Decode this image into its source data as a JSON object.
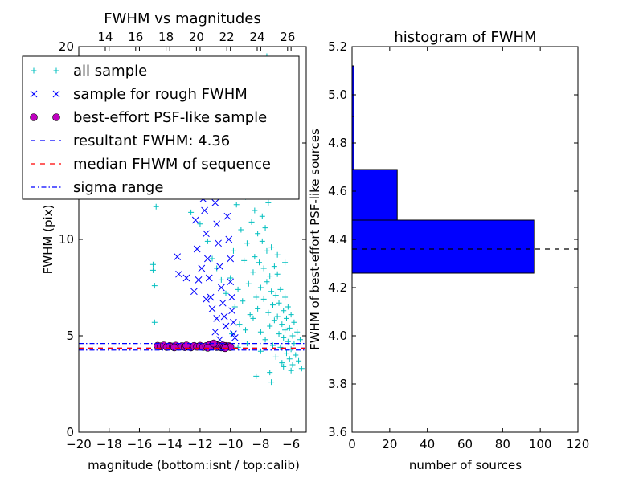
{
  "chart_data": [
    {
      "type": "scatter",
      "title": "FWHM vs magnitudes",
      "xlabel": "magnitude (bottom:isnt / top:calib)",
      "ylabel": "FWHM (pix)",
      "xlim": [
        -20,
        -5
      ],
      "ylim": [
        0,
        20
      ],
      "x_ticks": [
        "−20",
        "−18",
        "−16",
        "−14",
        "−12",
        "−10",
        "−8",
        "−6"
      ],
      "y_ticks": [
        "0",
        "5",
        "10",
        "15",
        "20"
      ],
      "top_axis_ticks": [
        "14",
        "16",
        "18",
        "20",
        "22",
        "24",
        "26"
      ],
      "grid": false,
      "legend_position": "upper-left",
      "legend": [
        {
          "label": "all sample",
          "marker": "+",
          "color": "#00bfbf"
        },
        {
          "label": "sample for rough FWHM",
          "marker": "x",
          "color": "#0000ff"
        },
        {
          "label": "best-effort PSF-like sample",
          "marker": "o",
          "color": "#bf00bf"
        },
        {
          "label": "resultant FWHM: 4.36",
          "line": "dashed",
          "color": "#0000ff"
        },
        {
          "label": "median FHWM of sequence",
          "line": "dashed",
          "color": "#ff0000"
        },
        {
          "label": "sigma range",
          "line": "dashdot",
          "color": "#0000ff"
        }
      ],
      "series": [
        {
          "name": "all sample",
          "points": [
            [
              -15.1,
              8.7
            ],
            [
              -15.1,
              8.4
            ],
            [
              -15.0,
              7.6
            ],
            [
              -15.0,
              5.7
            ],
            [
              -14.9,
              11.7
            ],
            [
              -14.6,
              13.5
            ],
            [
              -14.3,
              14.0
            ],
            [
              -13.9,
              12.5
            ],
            [
              -13.5,
              12.8
            ],
            [
              -13.0,
              13.2
            ],
            [
              -12.6,
              11.4
            ],
            [
              -12.0,
              10.8
            ],
            [
              -11.5,
              9.9
            ],
            [
              -11.2,
              9.0
            ],
            [
              -10.9,
              8.5
            ],
            [
              -10.6,
              7.9
            ],
            [
              -10.3,
              7.2
            ],
            [
              -10.0,
              8.0
            ],
            [
              -9.9,
              5.1
            ],
            [
              -9.8,
              9.4
            ],
            [
              -9.7,
              6.5
            ],
            [
              -9.6,
              11.8
            ],
            [
              -9.5,
              7.4
            ],
            [
              -9.4,
              5.6
            ],
            [
              -9.3,
              10.5
            ],
            [
              -9.2,
              6.8
            ],
            [
              -9.1,
              8.9
            ],
            [
              -9.0,
              12.2
            ],
            [
              -9.0,
              5.3
            ],
            [
              -8.9,
              9.8
            ],
            [
              -8.8,
              7.7
            ],
            [
              -8.8,
              13.4
            ],
            [
              -8.7,
              6.1
            ],
            [
              -8.6,
              10.9
            ],
            [
              -8.6,
              15.2
            ],
            [
              -8.5,
              8.3
            ],
            [
              -8.5,
              5.9
            ],
            [
              -8.4,
              11.5
            ],
            [
              -8.4,
              9.1
            ],
            [
              -8.3,
              7.0
            ],
            [
              -8.3,
              13.0
            ],
            [
              -8.2,
              10.3
            ],
            [
              -8.2,
              6.4
            ],
            [
              -8.1,
              8.8
            ],
            [
              -8.1,
              12.6
            ],
            [
              -8.0,
              7.5
            ],
            [
              -8.0,
              5.2
            ],
            [
              -7.9,
              9.9
            ],
            [
              -7.9,
              11.2
            ],
            [
              -7.8,
              6.9
            ],
            [
              -7.8,
              8.5
            ],
            [
              -7.7,
              10.6
            ],
            [
              -7.7,
              4.8
            ],
            [
              -7.6,
              7.8
            ],
            [
              -7.6,
              9.4
            ],
            [
              -7.5,
              6.2
            ],
            [
              -7.5,
              11.9
            ],
            [
              -7.4,
              8.1
            ],
            [
              -7.4,
              5.5
            ],
            [
              -7.3,
              7.3
            ],
            [
              -7.3,
              9.6
            ],
            [
              -7.2,
              6.6
            ],
            [
              -7.2,
              4.5
            ],
            [
              -7.1,
              8.6
            ],
            [
              -7.1,
              5.8
            ],
            [
              -7.0,
              7.1
            ],
            [
              -7.0,
              3.9
            ],
            [
              -6.9,
              6.0
            ],
            [
              -6.9,
              8.2
            ],
            [
              -6.8,
              5.1
            ],
            [
              -6.8,
              6.7
            ],
            [
              -6.7,
              4.4
            ],
            [
              -6.7,
              7.4
            ],
            [
              -6.6,
              5.6
            ],
            [
              -6.6,
              3.6
            ],
            [
              -6.5,
              6.3
            ],
            [
              -6.5,
              4.9
            ],
            [
              -6.4,
              5.3
            ],
            [
              -6.4,
              7.0
            ],
            [
              -6.3,
              4.1
            ],
            [
              -6.3,
              5.9
            ],
            [
              -6.2,
              4.7
            ],
            [
              -6.2,
              6.5
            ],
            [
              -6.1,
              3.8
            ],
            [
              -6.1,
              5.4
            ],
            [
              -6.0,
              4.3
            ],
            [
              -6.0,
              6.1
            ],
            [
              -5.9,
              5.0
            ],
            [
              -5.9,
              3.5
            ],
            [
              -5.8,
              4.6
            ],
            [
              -5.8,
              5.7
            ],
            [
              -5.7,
              4.0
            ],
            [
              -5.6,
              5.2
            ],
            [
              -5.5,
              3.7
            ],
            [
              -5.4,
              4.8
            ],
            [
              -5.3,
              3.3
            ],
            [
              -7.3,
              2.6
            ],
            [
              -8.3,
              2.9
            ],
            [
              -7.9,
              17.5
            ],
            [
              -7.6,
              19.5
            ],
            [
              -7.1,
              18.4
            ],
            [
              -8.7,
              16.6
            ],
            [
              -9.1,
              14.6
            ],
            [
              -6.9,
              9.2
            ],
            [
              -6.4,
              8.8
            ],
            [
              -7.7,
              12.9
            ],
            [
              -8.9,
              4.6
            ],
            [
              -9.5,
              4.4
            ],
            [
              -8.0,
              4.2
            ],
            [
              -6.5,
              3.4
            ],
            [
              -7.4,
              3.1
            ],
            [
              -6.0,
              3.2
            ]
          ]
        },
        {
          "name": "sample for rough FWHM",
          "points": [
            [
              -13.5,
              9.1
            ],
            [
              -13.4,
              8.2
            ],
            [
              -12.9,
              8.0
            ],
            [
              -12.3,
              11.0
            ],
            [
              -12.2,
              9.5
            ],
            [
              -12.1,
              7.9
            ],
            [
              -11.8,
              12.1
            ],
            [
              -11.7,
              11.5
            ],
            [
              -11.6,
              10.3
            ],
            [
              -11.5,
              9.0
            ],
            [
              -11.4,
              8.0
            ],
            [
              -11.3,
              7.0
            ],
            [
              -11.2,
              6.4
            ],
            [
              -11.1,
              12.8
            ],
            [
              -11.0,
              11.9
            ],
            [
              -10.9,
              10.8
            ],
            [
              -10.8,
              9.8
            ],
            [
              -10.7,
              8.6
            ],
            [
              -10.6,
              7.5
            ],
            [
              -10.5,
              6.7
            ],
            [
              -10.4,
              6.0
            ],
            [
              -10.3,
              5.5
            ],
            [
              -10.2,
              11.2
            ],
            [
              -10.1,
              10.0
            ],
            [
              -10.0,
              9.0
            ],
            [
              -10.0,
              7.8
            ],
            [
              -9.9,
              7.0
            ],
            [
              -9.9,
              6.3
            ],
            [
              -9.8,
              5.7
            ],
            [
              -9.8,
              5.1
            ],
            [
              -10.6,
              12.5
            ],
            [
              -11.4,
              13.3
            ],
            [
              -9.7,
              4.9
            ],
            [
              -10.9,
              5.9
            ],
            [
              -11.9,
              8.5
            ],
            [
              -12.4,
              7.3
            ],
            [
              -11.6,
              6.9
            ],
            [
              -10.3,
              13.1
            ],
            [
              -10.7,
              4.8
            ],
            [
              -11.0,
              5.2
            ]
          ]
        },
        {
          "name": "best-effort PSF-like sample",
          "points": [
            [
              -14.8,
              4.48
            ],
            [
              -14.6,
              4.45
            ],
            [
              -14.4,
              4.5
            ],
            [
              -14.2,
              4.42
            ],
            [
              -14.0,
              4.47
            ],
            [
              -13.8,
              4.44
            ],
            [
              -13.6,
              4.49
            ],
            [
              -13.4,
              4.43
            ],
            [
              -13.2,
              4.46
            ],
            [
              -13.0,
              4.41
            ],
            [
              -12.8,
              4.45
            ],
            [
              -12.6,
              4.4
            ],
            [
              -12.4,
              4.47
            ],
            [
              -12.2,
              4.43
            ],
            [
              -12.0,
              4.48
            ],
            [
              -11.8,
              4.42
            ],
            [
              -11.6,
              4.46
            ],
            [
              -11.4,
              4.52
            ],
            [
              -11.2,
              4.45
            ],
            [
              -11.0,
              4.55
            ],
            [
              -10.9,
              4.42
            ],
            [
              -10.8,
              4.49
            ],
            [
              -10.7,
              4.46
            ],
            [
              -10.6,
              4.4
            ],
            [
              -10.5,
              4.5
            ],
            [
              -10.4,
              4.44
            ],
            [
              -10.3,
              4.47
            ],
            [
              -10.2,
              4.43
            ],
            [
              -10.1,
              4.46
            ],
            [
              -10.0,
              4.42
            ],
            [
              -13.7,
              4.4
            ],
            [
              -12.9,
              4.5
            ],
            [
              -11.5,
              4.38
            ],
            [
              -11.1,
              4.6
            ],
            [
              -10.35,
              4.36
            ]
          ]
        }
      ],
      "lines": [
        {
          "name": "resultant FWHM",
          "y": 4.36,
          "color": "#0000ff",
          "style": "dashed"
        },
        {
          "name": "median FHWM of sequence",
          "y": 4.36,
          "color": "#ff0000",
          "style": "dashed"
        },
        {
          "name": "sigma range",
          "y": 4.6,
          "color": "#0000ff",
          "style": "dashdot"
        },
        {
          "name": "sigma range",
          "y": 4.26,
          "color": "#0000ff",
          "style": "dashdot"
        }
      ]
    },
    {
      "type": "bar",
      "orientation": "horizontal",
      "title": "histogram of FWHM",
      "xlabel": "number of sources",
      "ylabel": "FWHM of best-effort PSF-like sources",
      "xlim": [
        0,
        120
      ],
      "ylim": [
        3.6,
        5.2
      ],
      "x_ticks": [
        "0",
        "20",
        "40",
        "60",
        "80",
        "100",
        "120"
      ],
      "y_ticks": [
        "3.6",
        "3.8",
        "4.0",
        "4.2",
        "4.4",
        "4.6",
        "4.8",
        "5.0",
        "5.2"
      ],
      "bar_color": "#0000ff",
      "bins": [
        {
          "low": 4.26,
          "high": 4.48,
          "count": 97
        },
        {
          "low": 4.48,
          "high": 4.69,
          "count": 24
        },
        {
          "low": 4.69,
          "high": 4.91,
          "count": 1
        },
        {
          "low": 4.91,
          "high": 5.12,
          "count": 1
        }
      ],
      "reference_line": {
        "y": 4.36,
        "color": "#000000",
        "style": "dashed"
      }
    }
  ]
}
